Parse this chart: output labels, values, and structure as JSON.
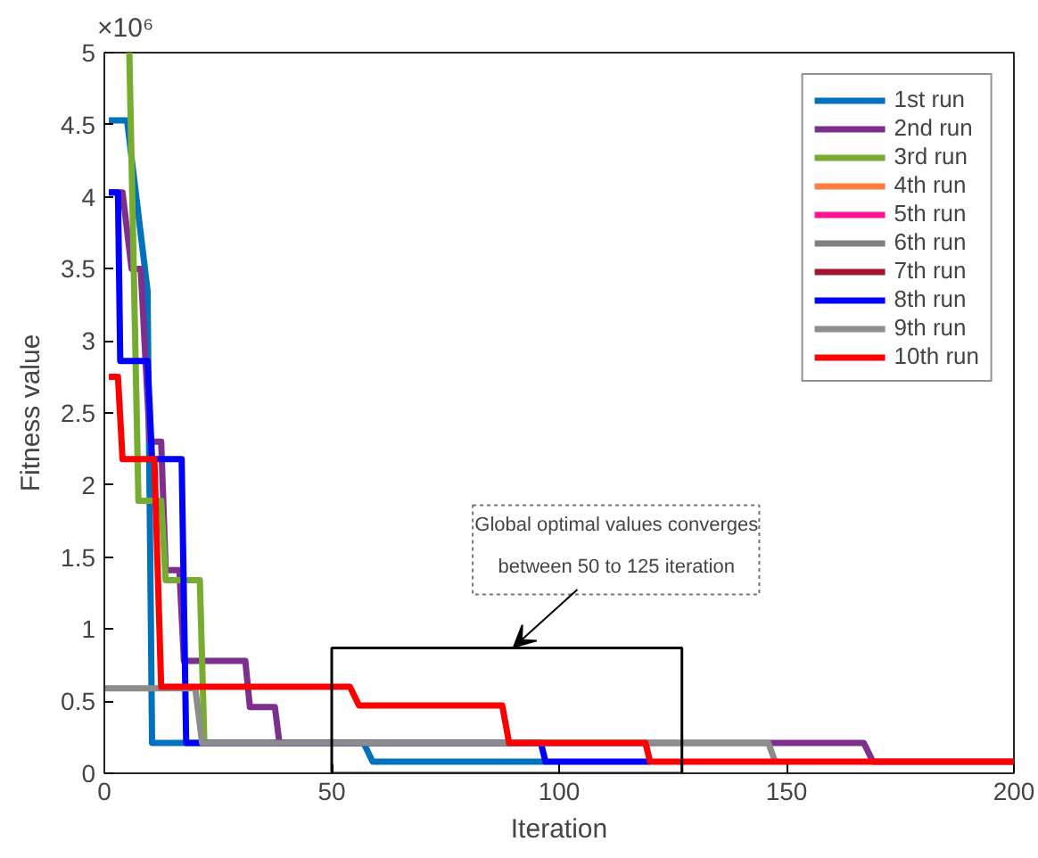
{
  "chart_data": {
    "type": "line",
    "xlabel": "Iteration",
    "ylabel": "Fitness value",
    "xlim": [
      0,
      200
    ],
    "ylim": [
      0,
      5
    ],
    "xticks": [
      0,
      50,
      100,
      150,
      200
    ],
    "yticks": [
      0,
      0.5,
      1,
      1.5,
      2,
      2.5,
      3,
      3.5,
      4,
      4.5,
      5
    ],
    "grid": false,
    "legend": "top right",
    "marker": "none",
    "line_style": "solid",
    "annotations": [
      "×10⁶",
      "Global optimal values converges\nbetween 50 to 125 iteration"
    ],
    "series": [
      {
        "name": "1st run",
        "color": "#0072bd",
        "x": [
          1,
          5,
          9.5,
          10.5,
          57,
          59,
          97
        ],
        "values": [
          4.53,
          4.53,
          3.35,
          0.21,
          0.21,
          0.08,
          0.08
        ]
      },
      {
        "name": "2nd run",
        "color": "#7e2f8e",
        "x": [
          1,
          4,
          6,
          8,
          10,
          12.5,
          13.5,
          16.5,
          17.5,
          31,
          32,
          37.5,
          38.5,
          167,
          169,
          200
        ],
        "values": [
          4.03,
          4.03,
          3.5,
          3.5,
          2.3,
          2.3,
          1.41,
          1.41,
          0.78,
          0.78,
          0.46,
          0.46,
          0.21,
          0.21,
          0.08,
          0.08
        ]
      },
      {
        "name": "3rd run",
        "color": "#77ac30",
        "x": [
          5.5,
          7.5,
          12.5,
          13.5,
          21,
          22,
          96
        ],
        "values": [
          5.0,
          1.89,
          1.89,
          1.34,
          1.34,
          0.21,
          0.21
        ]
      },
      {
        "name": "4th run",
        "color": "#ff7f3f"
      },
      {
        "name": "5th run",
        "color": "#ff1493"
      },
      {
        "name": "6th run",
        "color": "#808080"
      },
      {
        "name": "7th run",
        "color": "#a2142f"
      },
      {
        "name": "8th run",
        "color": "#0000ff",
        "x": [
          1,
          3,
          3.5,
          9.5,
          10.5,
          17,
          18,
          96,
          97,
          120
        ],
        "values": [
          4.03,
          4.03,
          2.86,
          2.86,
          2.18,
          2.18,
          0.21,
          0.21,
          0.08,
          0.08
        ]
      },
      {
        "name": "9th run",
        "color": "#8c8c8c",
        "x": [
          0,
          20,
          21.5,
          146,
          147.5
        ],
        "values": [
          0.59,
          0.59,
          0.21,
          0.21,
          0.08
        ]
      },
      {
        "name": "10th run",
        "color": "#ff0000",
        "x": [
          1,
          3,
          4,
          11,
          12.5,
          54,
          56,
          87.5,
          89,
          119,
          120,
          200
        ],
        "values": [
          2.75,
          2.75,
          2.18,
          2.18,
          0.6,
          0.6,
          0.47,
          0.47,
          0.21,
          0.21,
          0.08,
          0.08
        ]
      }
    ]
  }
}
